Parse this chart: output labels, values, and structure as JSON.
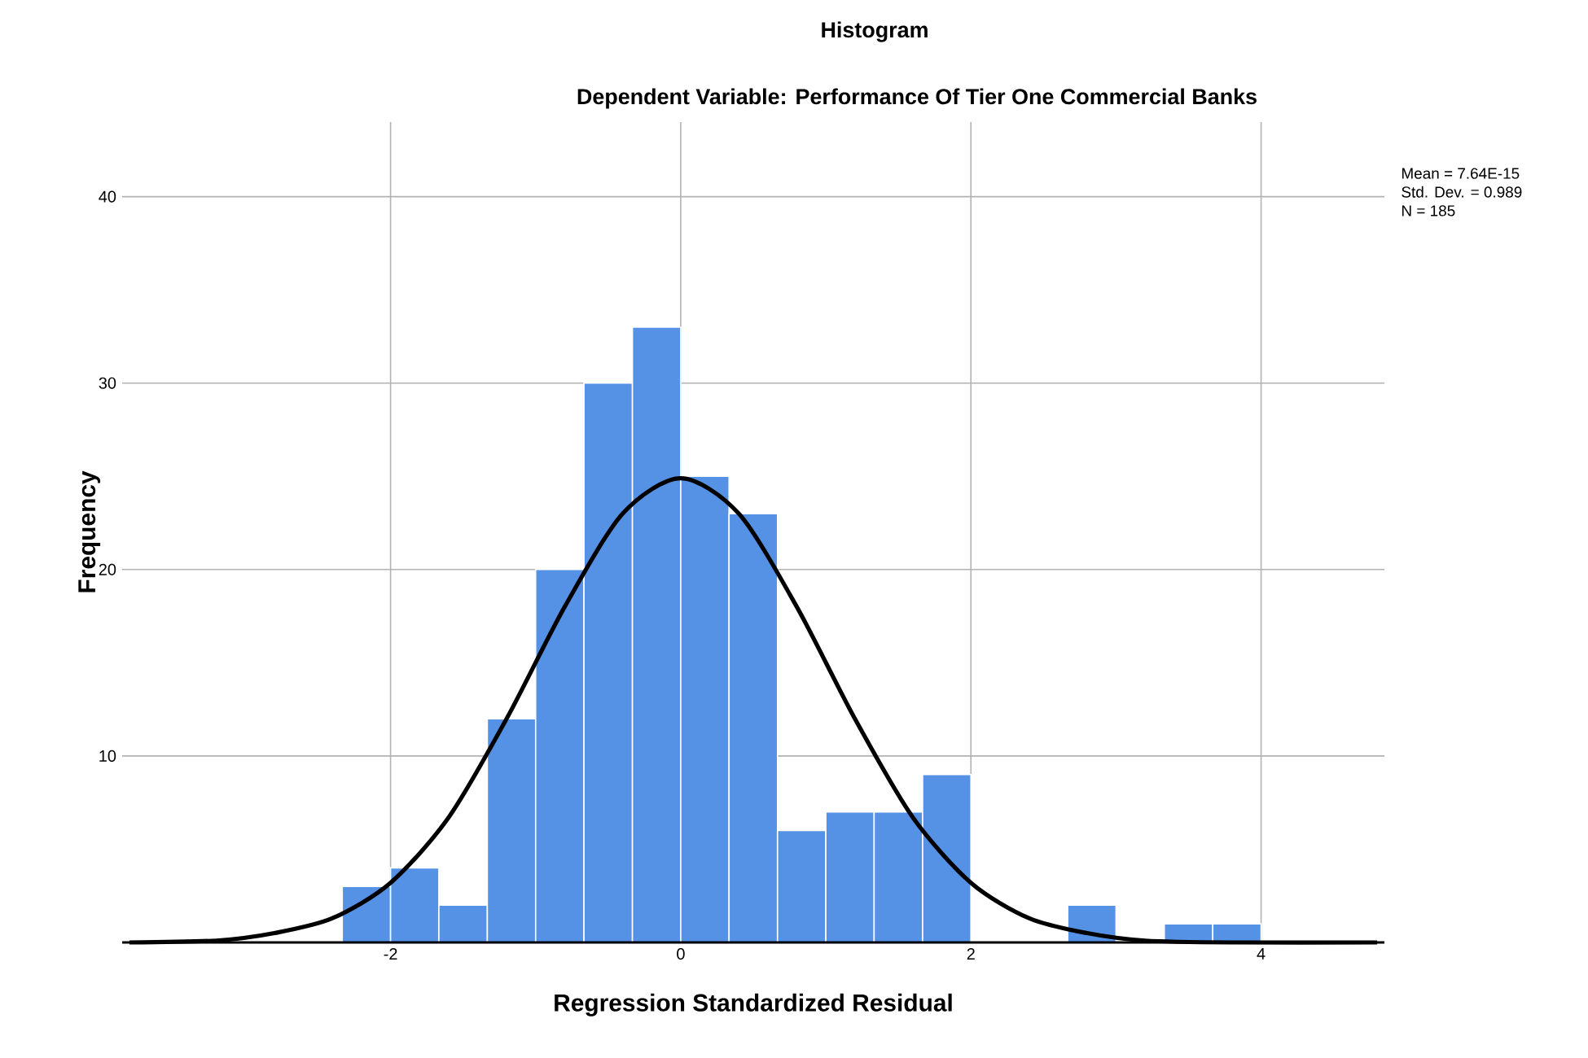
{
  "chart_data": {
    "type": "histogram",
    "title": "Histogram",
    "subtitle": "Dependent Variable: Performance Of Tier One Commercial Banks",
    "xlabel": "Regression Standardized Residual",
    "ylabel": "Frequency",
    "bins": [
      -2.333,
      -2,
      -1.667,
      -1.333,
      -1,
      -0.667,
      -0.333,
      0,
      0.333,
      0.667,
      1,
      1.333,
      1.667,
      2,
      2.333,
      2.667,
      3,
      3.333,
      3.667,
      4
    ],
    "values": [
      3,
      4,
      2,
      12,
      20,
      30,
      33,
      25,
      23,
      6,
      7,
      7,
      9,
      0,
      0,
      2,
      0,
      1,
      1
    ],
    "color": "#5591e4",
    "series": [
      {
        "type": "line",
        "color": "#000000",
        "x": [
          -3.8,
          -3.2,
          -2.8,
          -2.4,
          -2,
          -1.6,
          -1.2,
          -0.8,
          -0.4,
          0,
          0.4,
          0.8,
          1.2,
          1.6,
          2,
          2.4,
          2.8,
          3.2,
          3.8,
          4.8
        ],
        "values": [
          0,
          0.1,
          0.5,
          1.3,
          3.2,
          6.7,
          12,
          18,
          23,
          24.9,
          23,
          18,
          12,
          6.7,
          3.2,
          1.3,
          0.5,
          0.1,
          0,
          0
        ]
      }
    ],
    "xlim": [
      -3.85,
      4.85
    ],
    "ylim": [
      0,
      44
    ],
    "xticks": [
      -2,
      0,
      2,
      4
    ],
    "yticks": [
      10,
      20,
      30,
      40
    ],
    "grid": true,
    "annotations": [
      "Mean = 7.64E-15",
      "Std. Dev. = 0.989",
      "N = 185"
    ]
  }
}
